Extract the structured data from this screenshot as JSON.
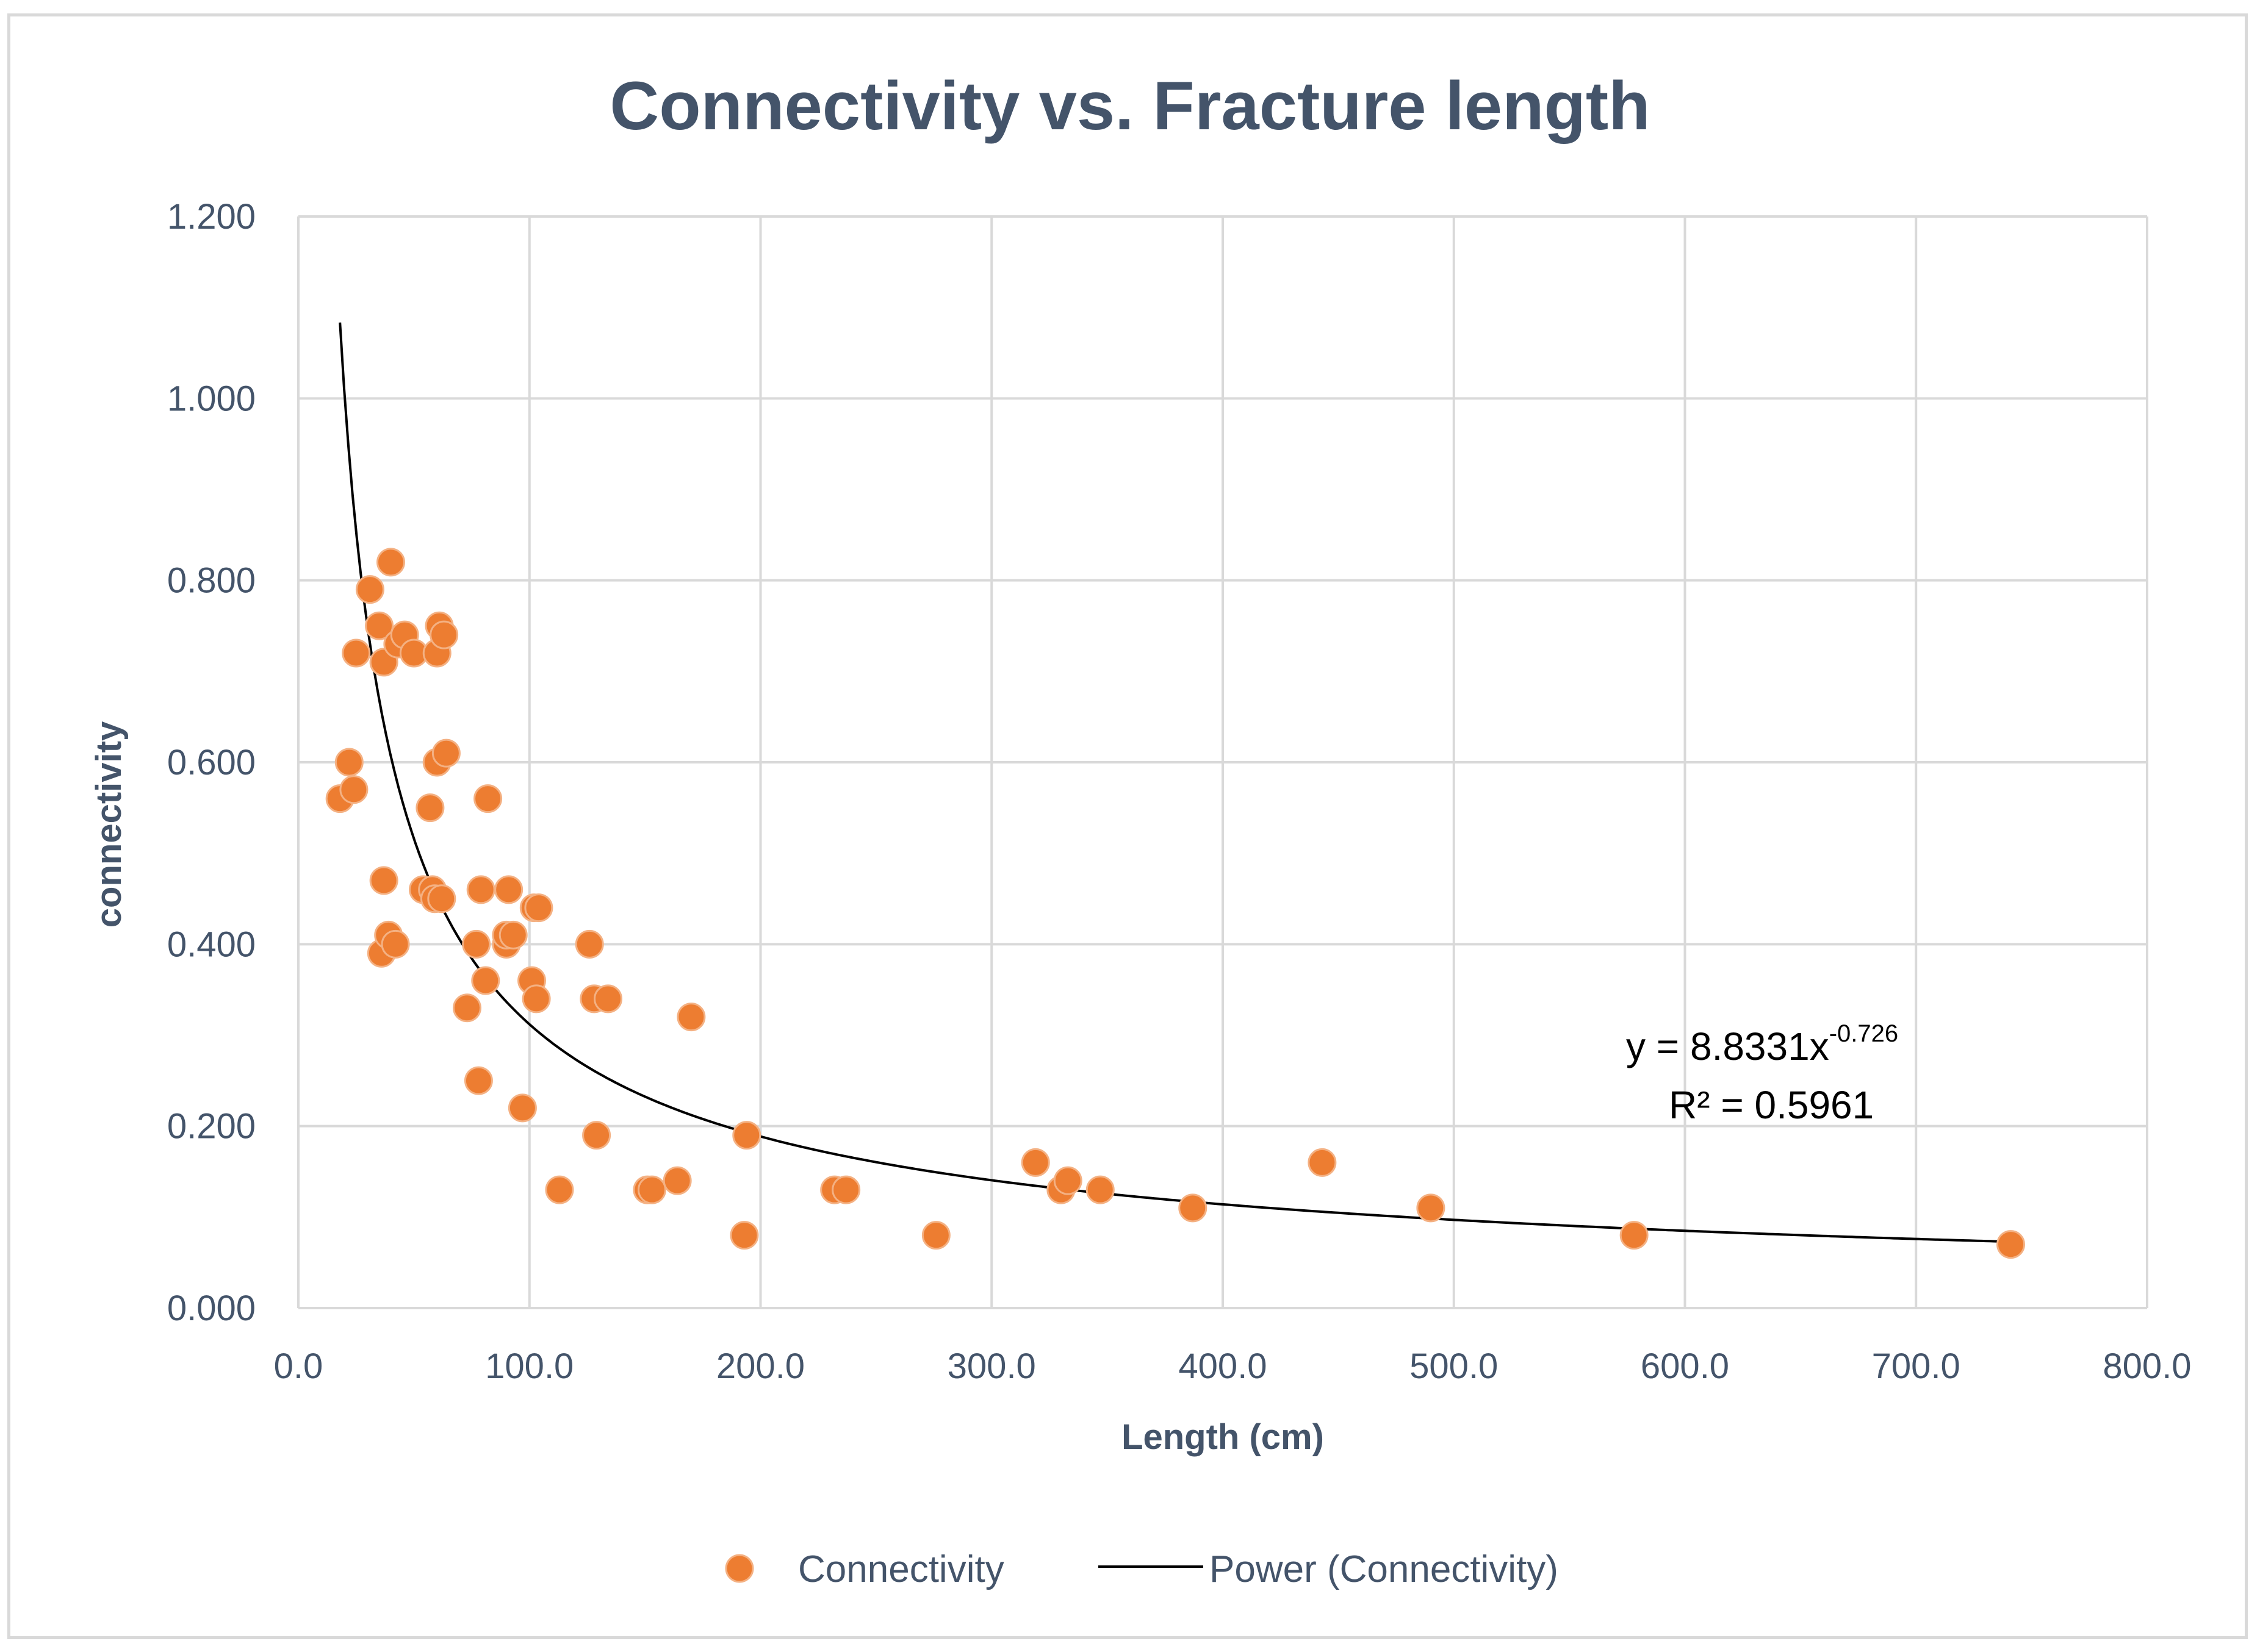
{
  "chart_data": {
    "type": "scatter",
    "title": "Connectivity vs. Fracture length",
    "xlabel": "Length (cm)",
    "ylabel": "connectivity",
    "xlim": [
      0,
      800
    ],
    "ylim": [
      0,
      1.2
    ],
    "x_ticks": [
      0,
      100,
      200,
      300,
      400,
      500,
      600,
      700,
      800
    ],
    "x_tick_labels": [
      "0.0",
      "100.0",
      "200.0",
      "300.0",
      "400.0",
      "500.0",
      "600.0",
      "700.0",
      "800.0"
    ],
    "y_ticks": [
      0,
      0.2,
      0.4,
      0.6,
      0.8,
      1.0,
      1.2
    ],
    "y_tick_labels": [
      "0.000",
      "0.200",
      "0.400",
      "0.600",
      "0.800",
      "1.000",
      "1.200"
    ],
    "grid": true,
    "legend_position": "bottom",
    "series": [
      {
        "name": "Connectivity",
        "color": "#ed7d31",
        "marker": "circle",
        "points": [
          [
            18,
            0.56
          ],
          [
            22,
            0.6
          ],
          [
            24,
            0.57
          ],
          [
            25,
            0.72
          ],
          [
            31,
            0.79
          ],
          [
            35,
            0.75
          ],
          [
            36,
            0.39
          ],
          [
            37,
            0.71
          ],
          [
            37,
            0.47
          ],
          [
            39,
            0.41
          ],
          [
            40,
            0.82
          ],
          [
            42,
            0.4
          ],
          [
            43,
            0.73
          ],
          [
            46,
            0.74
          ],
          [
            50,
            0.72
          ],
          [
            54,
            0.46
          ],
          [
            57,
            0.55
          ],
          [
            58,
            0.46
          ],
          [
            59,
            0.45
          ],
          [
            60,
            0.72
          ],
          [
            60,
            0.6
          ],
          [
            61,
            0.75
          ],
          [
            62,
            0.45
          ],
          [
            63,
            0.74
          ],
          [
            64,
            0.61
          ],
          [
            73,
            0.33
          ],
          [
            77,
            0.4
          ],
          [
            78,
            0.25
          ],
          [
            79,
            0.46
          ],
          [
            81,
            0.36
          ],
          [
            82,
            0.56
          ],
          [
            90,
            0.4
          ],
          [
            90,
            0.41
          ],
          [
            91,
            0.46
          ],
          [
            93,
            0.41
          ],
          [
            97,
            0.22
          ],
          [
            101,
            0.36
          ],
          [
            102,
            0.44
          ],
          [
            103,
            0.34
          ],
          [
            104,
            0.44
          ],
          [
            113,
            0.13
          ],
          [
            126,
            0.4
          ],
          [
            128,
            0.34
          ],
          [
            129,
            0.19
          ],
          [
            134,
            0.34
          ],
          [
            151,
            0.13
          ],
          [
            153,
            0.13
          ],
          [
            164,
            0.14
          ],
          [
            170,
            0.32
          ],
          [
            193,
            0.08
          ],
          [
            194,
            0.19
          ],
          [
            232,
            0.13
          ],
          [
            237,
            0.13
          ],
          [
            276,
            0.08
          ],
          [
            319,
            0.16
          ],
          [
            330,
            0.13
          ],
          [
            333,
            0.14
          ],
          [
            347,
            0.13
          ],
          [
            387,
            0.11
          ],
          [
            443,
            0.16
          ],
          [
            490,
            0.11
          ],
          [
            578,
            0.08
          ],
          [
            741,
            0.07
          ]
        ]
      },
      {
        "name": "Power (Connectivity)",
        "type": "trendline",
        "color": "#000000",
        "coefficient": 8.8331,
        "exponent": -0.726,
        "x_range": [
          18,
          741
        ]
      }
    ],
    "annotations": {
      "equation_prefix": "y = 8.8331x",
      "equation_exponent": "-0.726",
      "r_squared": "R² = 0.5961"
    }
  }
}
